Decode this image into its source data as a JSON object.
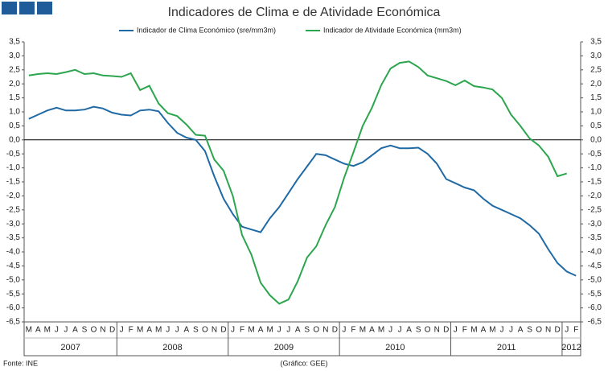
{
  "chart_data": {
    "type": "line",
    "title": "Indicadores de Clima e de Atividade Económica",
    "categories": [
      "M",
      "A",
      "M",
      "J",
      "J",
      "A",
      "S",
      "O",
      "N",
      "D",
      "J",
      "F",
      "M",
      "A",
      "M",
      "J",
      "J",
      "A",
      "S",
      "O",
      "N",
      "D",
      "J",
      "F",
      "M",
      "A",
      "M",
      "J",
      "J",
      "A",
      "S",
      "O",
      "N",
      "D",
      "J",
      "F",
      "M",
      "A",
      "M",
      "J",
      "J",
      "A",
      "S",
      "O",
      "N",
      "D",
      "J",
      "F",
      "M",
      "A",
      "M",
      "J",
      "J",
      "A",
      "S",
      "O",
      "N",
      "D",
      "J",
      "F"
    ],
    "years": [
      "2007",
      "2008",
      "2009",
      "2010",
      "2011",
      "2012"
    ],
    "series": [
      {
        "name": "Indicador de Clima Económico (sre/mm3m)",
        "color": "#1f6aa5",
        "values": [
          0.75,
          0.9,
          1.05,
          1.15,
          1.05,
          1.05,
          1.08,
          1.18,
          1.12,
          0.97,
          0.9,
          0.87,
          1.05,
          1.08,
          1.02,
          0.6,
          0.25,
          0.08,
          0.0,
          -0.4,
          -1.3,
          -2.1,
          -2.65,
          -3.1,
          -3.2,
          -3.3,
          -2.8,
          -2.4,
          -1.9,
          -1.4,
          -0.95,
          -0.5,
          -0.55,
          -0.7,
          -0.85,
          -0.93,
          -0.8,
          -0.55,
          -0.3,
          -0.2,
          -0.3,
          -0.3,
          -0.28,
          -0.5,
          -0.85,
          -1.4,
          -1.55,
          -1.7,
          -1.8,
          -2.1,
          -2.35,
          -2.5,
          -2.65,
          -2.8,
          -3.05,
          -3.35,
          -3.9,
          -4.4,
          -4.7,
          -4.85
        ]
      },
      {
        "name": "Indicador de Atividade Económica (mm3m)",
        "color": "#2ca64e",
        "values": [
          2.3,
          2.35,
          2.38,
          2.35,
          2.42,
          2.5,
          2.35,
          2.38,
          2.3,
          2.28,
          2.25,
          2.38,
          1.78,
          1.93,
          1.3,
          0.95,
          0.85,
          0.55,
          0.18,
          0.15,
          -0.7,
          -1.1,
          -2.0,
          -3.4,
          -4.1,
          -5.1,
          -5.55,
          -5.85,
          -5.7,
          -5.05,
          -4.2,
          -3.8,
          -3.05,
          -2.4,
          -1.35,
          -0.45,
          0.5,
          1.15,
          1.95,
          2.55,
          2.75,
          2.8,
          2.6,
          2.3,
          2.2,
          2.1,
          1.95,
          2.12,
          1.92,
          1.87,
          1.8,
          1.5,
          0.9,
          0.5,
          0.05,
          -0.2,
          -0.6,
          -1.3,
          -1.2,
          null
        ]
      }
    ],
    "ylim": [
      -6.5,
      3.5
    ],
    "yticks": [
      {
        "value": 3.5,
        "label": "3,5"
      },
      {
        "value": 3.0,
        "label": "3,0"
      },
      {
        "value": 2.5,
        "label": "2,5"
      },
      {
        "value": 2.0,
        "label": "2,0"
      },
      {
        "value": 1.5,
        "label": "1,5"
      },
      {
        "value": 1.0,
        "label": "1,0"
      },
      {
        "value": 0.5,
        "label": "0,5"
      },
      {
        "value": 0,
        "label": "0,0"
      },
      {
        "value": -0.5,
        "label": "-0,5"
      },
      {
        "value": -1.0,
        "label": "-1,0"
      },
      {
        "value": -1.5,
        "label": "-1,5"
      },
      {
        "value": -2.0,
        "label": "-2,0"
      },
      {
        "value": -2.5,
        "label": "-2,5"
      },
      {
        "value": -3.0,
        "label": "-3,0"
      },
      {
        "value": -3.5,
        "label": "-3,5"
      },
      {
        "value": -4.0,
        "label": "-4,0"
      },
      {
        "value": -4.5,
        "label": "-4,5"
      },
      {
        "value": -5.0,
        "label": "-5,0"
      },
      {
        "value": -5.5,
        "label": "-5,5"
      },
      {
        "value": -6.0,
        "label": "-6,0"
      },
      {
        "value": -6.5,
        "label": "-6,5"
      }
    ],
    "source": "Fonte: INE",
    "credit": "(Gráfico: GEE)"
  }
}
